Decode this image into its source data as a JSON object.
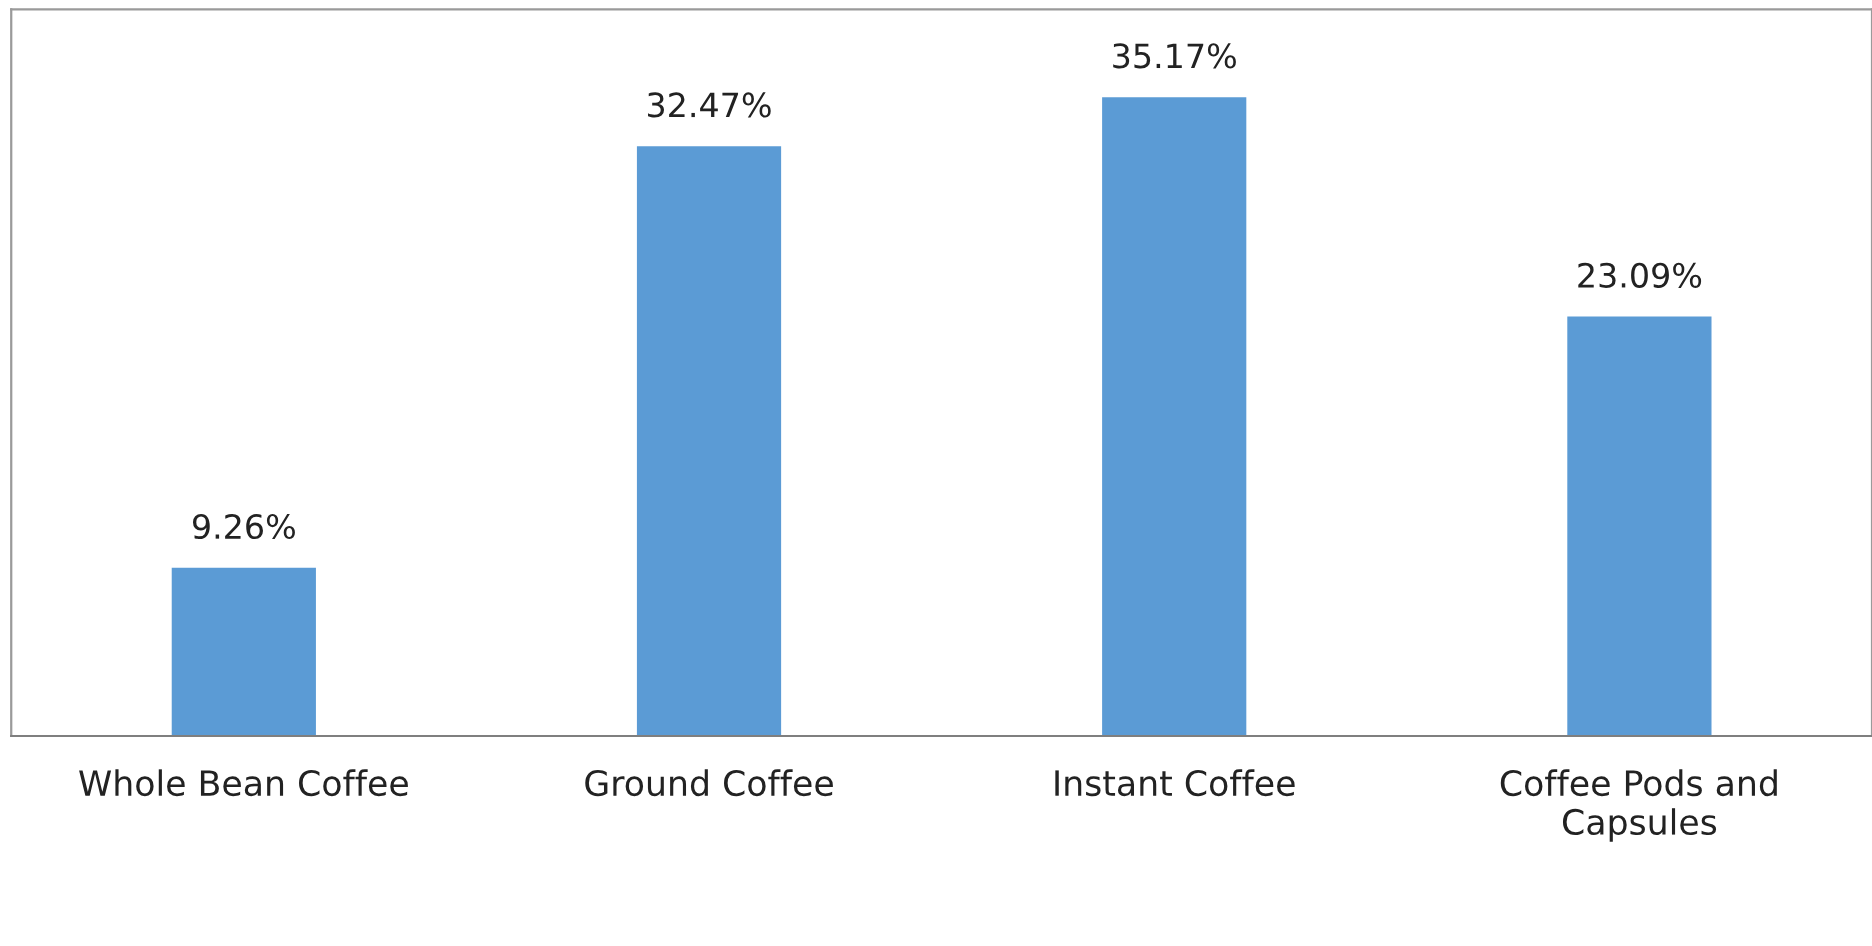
{
  "chart_data": {
    "type": "bar",
    "categories": [
      "Whole Bean Coffee",
      "Ground Coffee",
      "Instant Coffee",
      "Coffee Pods and\nCapsules"
    ],
    "values": [
      9.26,
      32.47,
      35.17,
      23.09
    ],
    "value_labels": [
      "9.26%",
      "32.47%",
      "35.17%",
      "23.09%"
    ],
    "color": "#5b9bd5",
    "ylim": [
      0,
      40
    ],
    "tick_labels": "x",
    "grid": false,
    "legend": false
  }
}
